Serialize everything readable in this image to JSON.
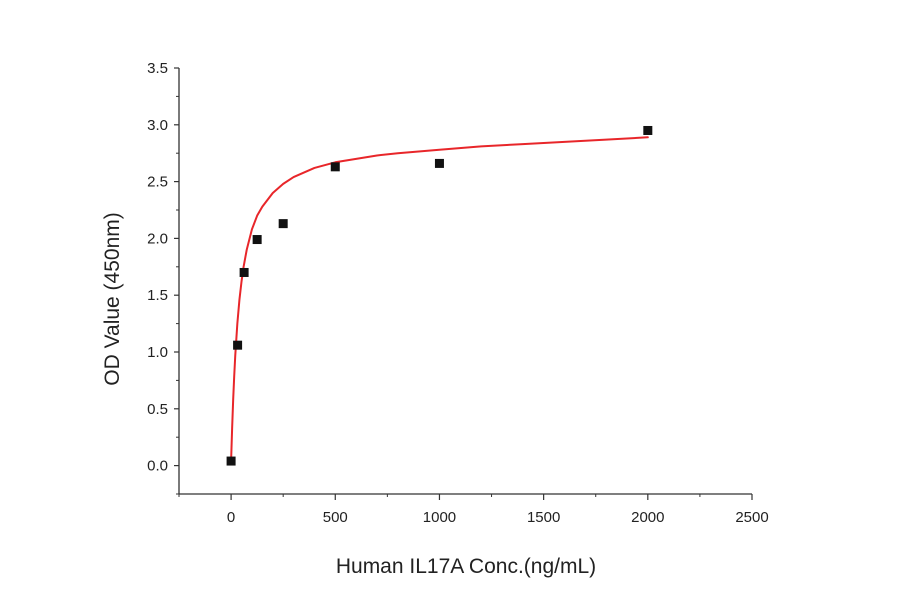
{
  "chart_data": {
    "type": "scatter",
    "title": "",
    "xlabel": "Human IL17A Conc.(ng/mL)",
    "ylabel": "OD Value (450nm)",
    "xlim": [
      -250,
      2500
    ],
    "ylim": [
      -0.25,
      3.5
    ],
    "x_ticks": [
      0,
      500,
      1000,
      1500,
      2000,
      2500
    ],
    "x_tick_labels": [
      "0",
      "500",
      "1000",
      "1500",
      "2000",
      "2500"
    ],
    "y_ticks": [
      0.0,
      0.5,
      1.0,
      1.5,
      2.0,
      2.5,
      3.0,
      3.5
    ],
    "y_tick_labels": [
      "0.0",
      "0.5",
      "1.0",
      "1.5",
      "2.0",
      "2.5",
      "3.0",
      "3.5"
    ],
    "grid": false,
    "legend": "none",
    "series": [
      {
        "kind": "points",
        "marker": "square",
        "color": "#111111",
        "x": [
          0,
          31.25,
          62.5,
          125,
          250,
          500,
          1000,
          2000
        ],
        "y": [
          0.04,
          1.06,
          1.7,
          1.99,
          2.13,
          2.63,
          2.66,
          2.95
        ]
      },
      {
        "kind": "fit-curve",
        "color": "#e8262a",
        "model": "hyperbolic",
        "x_range": [
          0,
          2000
        ],
        "points": [
          [
            0,
            0.04
          ],
          [
            5,
            0.33
          ],
          [
            10,
            0.58
          ],
          [
            15,
            0.79
          ],
          [
            20,
            0.97
          ],
          [
            30,
            1.25
          ],
          [
            40,
            1.46
          ],
          [
            50,
            1.62
          ],
          [
            60,
            1.75
          ],
          [
            75,
            1.9
          ],
          [
            100,
            2.08
          ],
          [
            125,
            2.2
          ],
          [
            150,
            2.28
          ],
          [
            200,
            2.4
          ],
          [
            250,
            2.48
          ],
          [
            300,
            2.54
          ],
          [
            400,
            2.62
          ],
          [
            500,
            2.67
          ],
          [
            600,
            2.7
          ],
          [
            700,
            2.73
          ],
          [
            800,
            2.75
          ],
          [
            1000,
            2.78
          ],
          [
            1200,
            2.81
          ],
          [
            1400,
            2.83
          ],
          [
            1600,
            2.85
          ],
          [
            1800,
            2.87
          ],
          [
            2000,
            2.89
          ]
        ]
      }
    ]
  }
}
